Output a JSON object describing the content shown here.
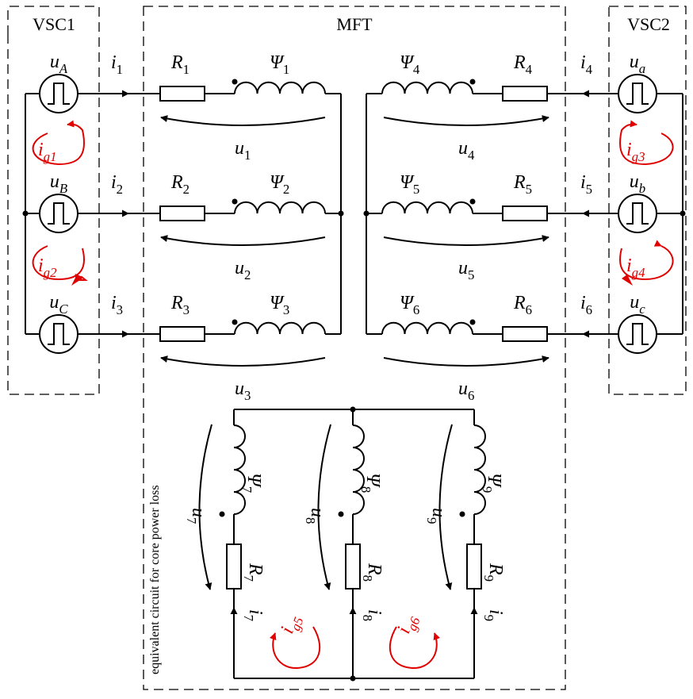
{
  "colors": {
    "wire": "#000000",
    "loop_current": "#e00000",
    "background": "#ffffff"
  },
  "boxes": {
    "vsc1": "VSC1",
    "mft": "MFT",
    "vsc2": "VSC2"
  },
  "sources_left": [
    {
      "name": "u",
      "sub": "A",
      "icon": "square-pulse-source-icon"
    },
    {
      "name": "u",
      "sub": "B",
      "icon": "square-pulse-source-icon"
    },
    {
      "name": "u",
      "sub": "C",
      "icon": "square-pulse-source-icon"
    }
  ],
  "sources_right": [
    {
      "name": "u",
      "sub": "a",
      "icon": "square-pulse-source-icon"
    },
    {
      "name": "u",
      "sub": "b",
      "icon": "square-pulse-source-icon"
    },
    {
      "name": "u",
      "sub": "c",
      "icon": "square-pulse-source-icon"
    }
  ],
  "windings_left": [
    {
      "i": "i",
      "isub": "1",
      "R": "R",
      "Rsub": "1",
      "psi": "Ψ",
      "psisub": "1",
      "u": "u",
      "usub": "1"
    },
    {
      "i": "i",
      "isub": "2",
      "R": "R",
      "Rsub": "2",
      "psi": "Ψ",
      "psisub": "2",
      "u": "u",
      "usub": "2"
    },
    {
      "i": "i",
      "isub": "3",
      "R": "R",
      "Rsub": "3",
      "psi": "Ψ",
      "psisub": "3",
      "u": "u",
      "usub": "3"
    }
  ],
  "windings_right": [
    {
      "i": "i",
      "isub": "4",
      "R": "R",
      "Rsub": "4",
      "psi": "Ψ",
      "psisub": "4",
      "u": "u",
      "usub": "4"
    },
    {
      "i": "i",
      "isub": "5",
      "R": "R",
      "Rsub": "5",
      "psi": "Ψ",
      "psisub": "5",
      "u": "u",
      "usub": "5"
    },
    {
      "i": "i",
      "isub": "6",
      "R": "R",
      "Rsub": "6",
      "psi": "Ψ",
      "psisub": "6",
      "u": "u",
      "usub": "6"
    }
  ],
  "core_branches": [
    {
      "i": "i",
      "isub": "7",
      "R": "R",
      "Rsub": "7",
      "psi": "Ψ",
      "psisub": "7",
      "u": "u",
      "usub": "7"
    },
    {
      "i": "i",
      "isub": "8",
      "R": "R",
      "Rsub": "8",
      "psi": "Ψ",
      "psisub": "8",
      "u": "u",
      "usub": "8"
    },
    {
      "i": "i",
      "isub": "9",
      "R": "R",
      "Rsub": "9",
      "psi": "Ψ",
      "psisub": "9",
      "u": "u",
      "usub": "9"
    }
  ],
  "loop_currents": [
    {
      "name": "i",
      "sub": "g1"
    },
    {
      "name": "i",
      "sub": "g2"
    },
    {
      "name": "i",
      "sub": "g3"
    },
    {
      "name": "i",
      "sub": "g4"
    },
    {
      "name": "i",
      "sub": "g5"
    },
    {
      "name": "i",
      "sub": "g6"
    }
  ],
  "core_caption": "equivalent circuit for core power loss"
}
